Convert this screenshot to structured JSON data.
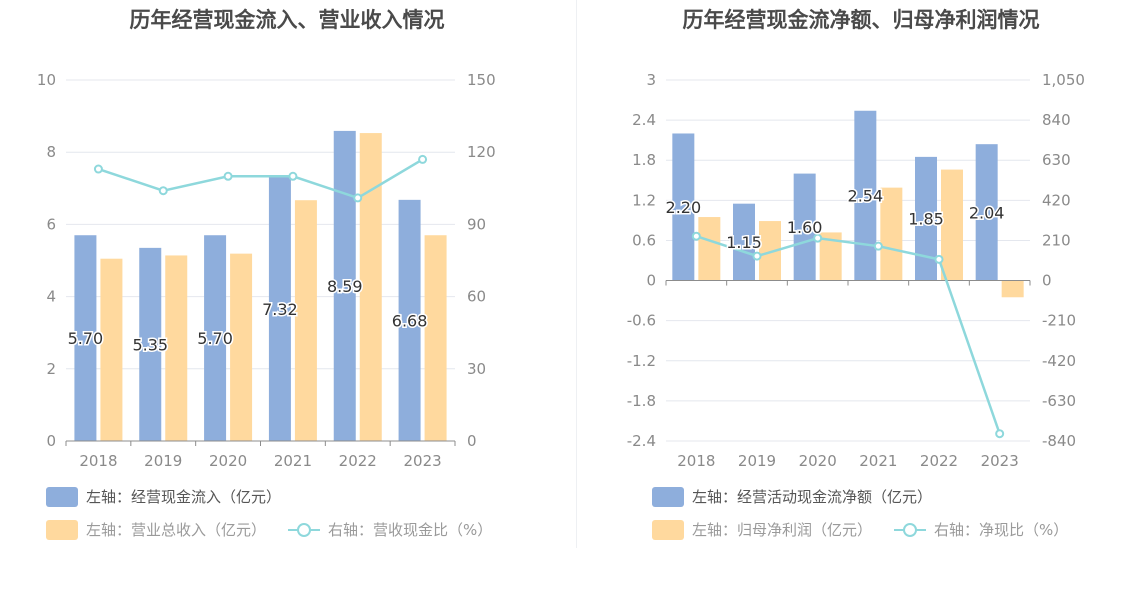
{
  "colors": {
    "bar_primary": "#8eaedc",
    "bar_secondary": "#ffd99e",
    "line": "#8ed8dc",
    "grid": "#e4e7ee",
    "axis_text": "#8a8a8a"
  },
  "chart_data": [
    {
      "type": "bar",
      "title": "历年经营现金流入、营业收入情况",
      "categories": [
        "2018",
        "2019",
        "2020",
        "2021",
        "2022",
        "2023"
      ],
      "y_left": {
        "ticks": [
          "0",
          "2",
          "4",
          "6",
          "8",
          "10"
        ],
        "range": [
          0,
          10
        ]
      },
      "y_right": {
        "ticks": [
          "0",
          "30",
          "60",
          "90",
          "120",
          "150"
        ],
        "range": [
          0,
          150
        ]
      },
      "series": [
        {
          "name": "左轴：经营现金流入（亿元）",
          "axis": "left",
          "type": "bar",
          "values": [
            5.7,
            5.35,
            5.7,
            7.32,
            8.59,
            6.68
          ],
          "labels": [
            "5.70",
            "5.35",
            "5.70",
            "7.32",
            "8.59",
            "6.68"
          ]
        },
        {
          "name": "左轴：营业总收入（亿元）",
          "axis": "left",
          "type": "bar",
          "values": [
            5.05,
            5.14,
            5.19,
            6.67,
            8.53,
            5.7
          ]
        },
        {
          "name": "右轴：营收现金比（%）",
          "axis": "right",
          "type": "line",
          "values": [
            113,
            104,
            110,
            110,
            101,
            117
          ]
        }
      ]
    },
    {
      "type": "bar",
      "title": "历年经营现金流净额、归母净利润情况",
      "categories": [
        "2018",
        "2019",
        "2020",
        "2021",
        "2022",
        "2023"
      ],
      "y_left": {
        "ticks": [
          "-2.4",
          "-1.8",
          "-1.2",
          "-0.6",
          "0",
          "0.6",
          "1.2",
          "1.8",
          "2.4",
          "3"
        ],
        "range": [
          -2.4,
          3
        ]
      },
      "y_right": {
        "ticks": [
          "-840",
          "-630",
          "-420",
          "-210",
          "0",
          "210",
          "420",
          "630",
          "840",
          "1,050"
        ],
        "range": [
          -840,
          1050
        ]
      },
      "series": [
        {
          "name": "左轴：经营活动现金流净额（亿元）",
          "axis": "left",
          "type": "bar",
          "values": [
            2.2,
            1.15,
            1.6,
            2.54,
            1.85,
            2.04
          ],
          "labels": [
            "2.20",
            "1.15",
            "1.60",
            "2.54",
            "1.85",
            "2.04"
          ]
        },
        {
          "name": "左轴：归母净利润（亿元）",
          "axis": "left",
          "type": "bar",
          "values": [
            0.95,
            0.89,
            0.72,
            1.39,
            1.66,
            -0.25
          ]
        },
        {
          "name": "右轴：净现比（%）",
          "axis": "right",
          "type": "line",
          "values": [
            232,
            128,
            222,
            180,
            111,
            -802
          ]
        }
      ]
    }
  ]
}
